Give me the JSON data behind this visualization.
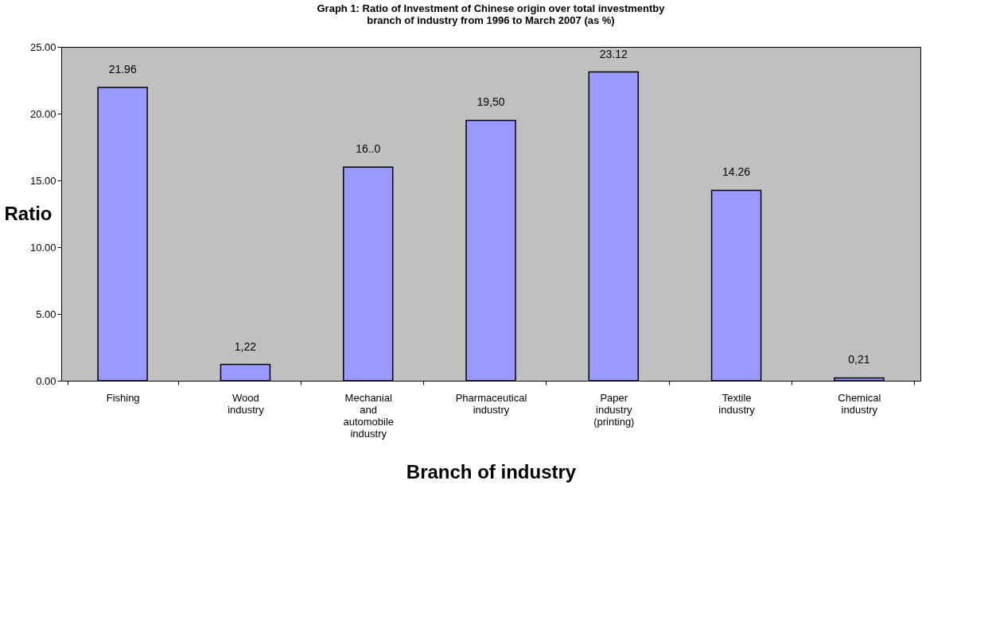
{
  "chart_data": {
    "type": "bar",
    "title": [
      "Graph 1: Ratio of Investment of Chinese origin over total investmentby",
      "branch of industry from 1996 to March 2007 (as %)"
    ],
    "xlabel": "Branch of industry",
    "ylabel": "Ratio",
    "categories": [
      "Fishing",
      "Wood industry",
      "Mechanial and  automobile  industry",
      "Pharmaceutical industry",
      "Paper industry (printing)",
      "Textile industry",
      "Chemical industry"
    ],
    "values": [
      21.96,
      1.22,
      16.0,
      19.5,
      23.12,
      14.26,
      0.21
    ],
    "value_labels": [
      "21.96",
      "1,22",
      "16..0",
      "19,50",
      "23.12",
      "14.26",
      "0,21"
    ],
    "color": "#9999ff",
    "ylim": [
      0,
      25
    ],
    "yticks": [
      {
        "value": 0,
        "label": "0.00"
      },
      {
        "value": 5,
        "label": "5.00"
      },
      {
        "value": 10,
        "label": "10.00"
      },
      {
        "value": 15,
        "label": "15.00"
      },
      {
        "value": 20,
        "label": "20.00"
      },
      {
        "value": 25,
        "label": "25.00"
      }
    ],
    "grid": false
  }
}
